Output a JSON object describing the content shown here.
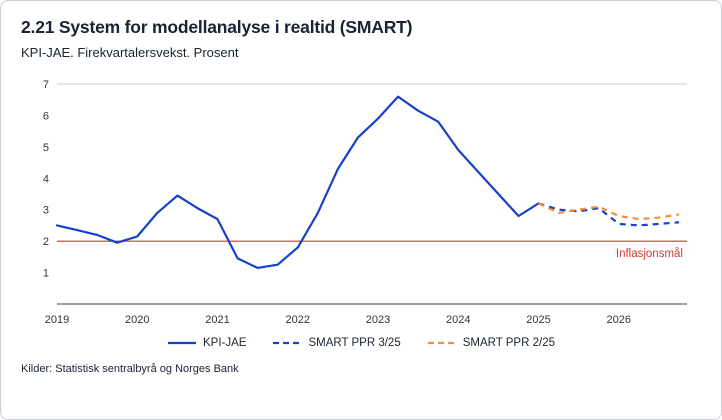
{
  "footer": {
    "sources": "Kilder: Statistisk sentralbyrå og Norges Bank"
  },
  "chart_data": {
    "type": "line",
    "title": "2.21 System for modellanalyse i realtid (SMART)",
    "subtitle": "KPI-JAE. Firekvartalersvekst. Prosent",
    "xlabel": "",
    "ylabel": "",
    "ylim": [
      0,
      7
    ],
    "xlim": [
      2019,
      2026.85
    ],
    "yticks": [
      1,
      2,
      3,
      4,
      5,
      6,
      7
    ],
    "xticks": [
      2019,
      2020,
      2021,
      2022,
      2023,
      2024,
      2025,
      2026
    ],
    "grid": "top-border-only",
    "legend_position": "bottom",
    "reference_line": {
      "value": 2,
      "label": "Inflasjonsmål",
      "color": "#d03a2e"
    },
    "colors": {
      "blue": "#1741c8",
      "orange": "#ee8f41",
      "red": "#d03a2e"
    },
    "series": [
      {
        "name": "KPI-JAE",
        "color": "#1741c8",
        "dash": "solid",
        "x": [
          2019.0,
          2019.25,
          2019.5,
          2019.75,
          2020.0,
          2020.25,
          2020.5,
          2020.75,
          2021.0,
          2021.25,
          2021.5,
          2021.75,
          2022.0,
          2022.25,
          2022.5,
          2022.75,
          2023.0,
          2023.25,
          2023.5,
          2023.75,
          2024.0,
          2024.25,
          2024.5,
          2024.75,
          2025.0
        ],
        "values": [
          2.5,
          2.35,
          2.2,
          1.95,
          2.15,
          2.9,
          3.45,
          3.05,
          2.7,
          1.45,
          1.15,
          1.25,
          1.8,
          2.9,
          4.3,
          5.3,
          5.9,
          6.6,
          6.15,
          5.8,
          4.9,
          4.2,
          3.5,
          2.8,
          3.2
        ],
        "x_unit": "year-quarter"
      },
      {
        "name": "SMART PPR 3/25",
        "color": "#1741c8",
        "dash": "dashed",
        "x": [
          2025.0,
          2025.25,
          2025.5,
          2025.75,
          2026.0,
          2026.25,
          2026.5,
          2026.75
        ],
        "values": [
          3.2,
          3.0,
          2.95,
          3.05,
          2.55,
          2.5,
          2.55,
          2.6
        ],
        "x_unit": "year-quarter"
      },
      {
        "name": "SMART PPR 2/25",
        "color": "#ee8f41",
        "dash": "dashed",
        "x": [
          2025.0,
          2025.25,
          2025.5,
          2025.75,
          2026.0,
          2026.25,
          2026.5,
          2026.75
        ],
        "values": [
          3.2,
          2.9,
          3.0,
          3.1,
          2.8,
          2.7,
          2.75,
          2.85
        ],
        "x_unit": "year-quarter"
      }
    ]
  }
}
